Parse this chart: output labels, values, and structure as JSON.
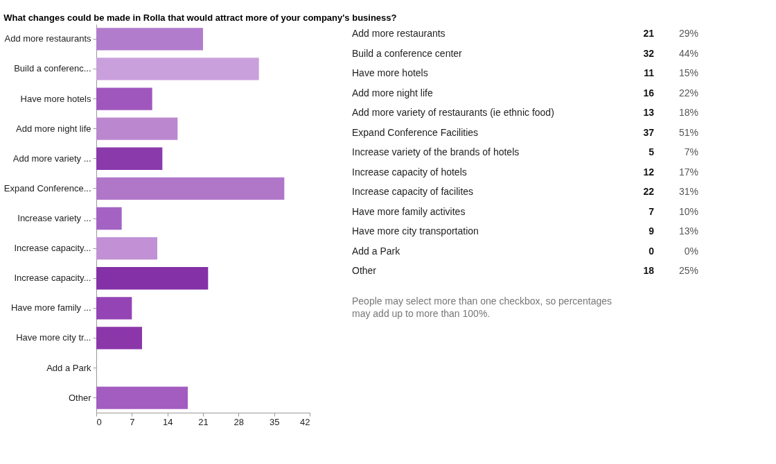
{
  "chart_data": [
    {
      "type": "bar",
      "orientation": "horizontal",
      "title": "What changes could be made in Rolla that would attract more of your company's business?",
      "categories": [
        "Add more restaurants",
        "Build a conferenc...",
        "Have more hotels",
        "Add more night life",
        "Add more variety ...",
        "Expand Conference...",
        "Increase variety ...",
        "Increase capacity...",
        "Increase capacity...",
        "Have more family ...",
        "Have more city tr...",
        "Add a Park",
        "Other"
      ],
      "values": [
        21,
        32,
        11,
        16,
        13,
        37,
        5,
        12,
        22,
        7,
        9,
        0,
        18
      ],
      "colors": [
        "#b27ccd",
        "#c9a0dc",
        "#9f57bd",
        "#bb88d0",
        "#8a3aab",
        "#b077c9",
        "#a463c3",
        "#c291d5",
        "#8430a6",
        "#9444b4",
        "#8b37aa",
        "#a35cc0",
        "#a35cc0"
      ],
      "xlim": [
        0,
        42
      ],
      "xticks": [
        0,
        7,
        14,
        21,
        28,
        35,
        42
      ],
      "grid": false
    },
    {
      "type": "other",
      "categories": [
        "Add more restaurants",
        "Build a conference center",
        "Have more hotels",
        "Add more night life",
        "Add more variety of restaurants (ie ethnic food)",
        "Expand Conference Facilities",
        "Increase variety of the brands of hotels",
        "Increase capacity of hotels",
        "Increase capacity of facilites",
        "Have more family activites",
        "Have more city transportation",
        "Add a Park",
        "Other"
      ],
      "values": [
        21,
        32,
        11,
        16,
        13,
        37,
        5,
        12,
        22,
        7,
        9,
        0,
        18
      ],
      "data_labels": true,
      "annotations": [
        "29%",
        "44%",
        "15%",
        "22%",
        "18%",
        "51%",
        "7%",
        "17%",
        "31%",
        "10%",
        "13%",
        "0%",
        "25%",
        "People may select more than one checkbox, so percentages may add up to more than 100%."
      ]
    }
  ]
}
